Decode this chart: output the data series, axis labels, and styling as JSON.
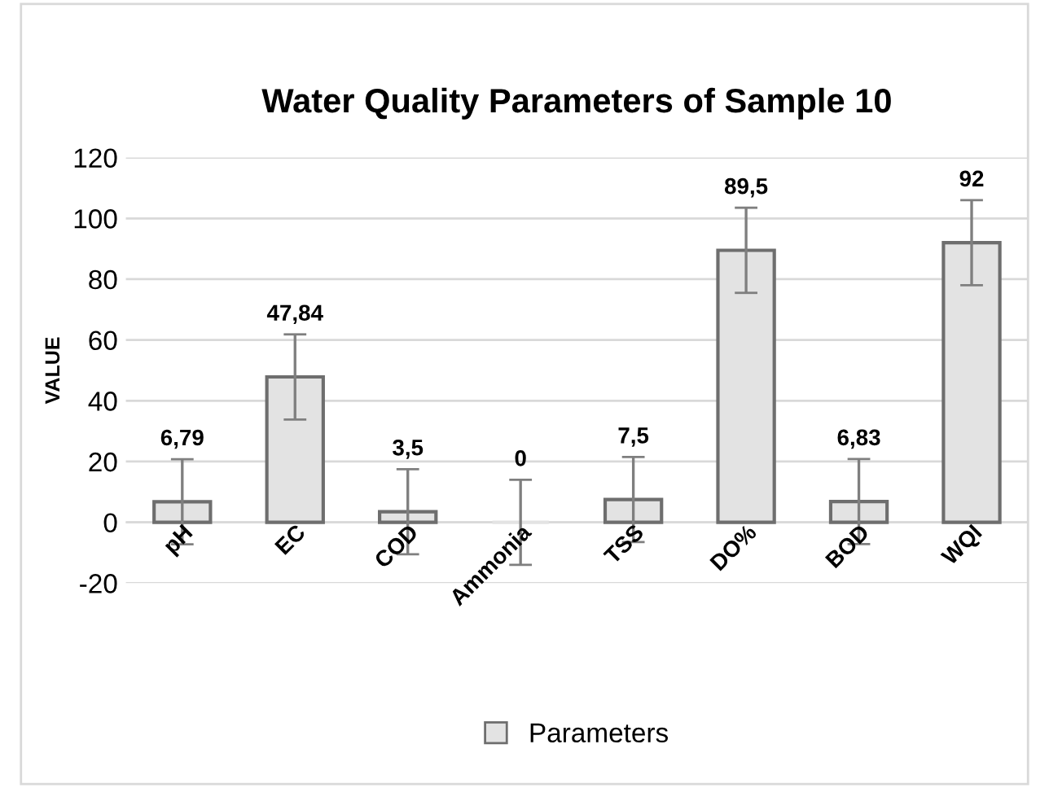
{
  "chart_data": {
    "type": "bar",
    "title": "Water Quality Parameters of Sample 10",
    "ylabel": "VALUE",
    "categories": [
      "pH",
      "EC",
      "COD",
      "Ammonia",
      "TSS",
      "DO%",
      "BOD",
      "WQI"
    ],
    "series": [
      {
        "name": "Parameters",
        "color": "#e3e3e3",
        "values": [
          6.79,
          47.84,
          3.5,
          0,
          7.5,
          89.5,
          6.83,
          92
        ],
        "errors": [
          14,
          14,
          14,
          14,
          14,
          14,
          14,
          14
        ],
        "value_labels": [
          "6,79",
          "47,84",
          "3,5",
          "0",
          "7,5",
          "89,5",
          "6,83",
          "92"
        ]
      }
    ],
    "ylim": [
      -20,
      120
    ],
    "yticks": [
      -20,
      0,
      20,
      40,
      60,
      80,
      100,
      120
    ],
    "grid": "y",
    "legend": "bottom"
  }
}
